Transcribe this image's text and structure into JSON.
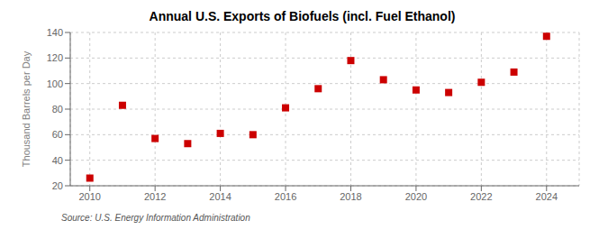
{
  "chart_data": {
    "type": "scatter",
    "title": "Annual U.S. Exports of Biofuels (incl. Fuel Ethanol)",
    "y_label": "Thousand Barrels per Day",
    "annotations": [
      "Source: U.S. Energy Information Administration"
    ],
    "x": [
      2010,
      2011,
      2012,
      2013,
      2014,
      2015,
      2016,
      2017,
      2018,
      2019,
      2020,
      2021,
      2022,
      2023,
      2024
    ],
    "values": [
      26,
      83,
      57,
      53,
      61,
      60,
      81,
      96,
      118,
      103,
      95,
      93,
      101,
      109,
      137
    ],
    "color": "#cc0000",
    "marker": "square",
    "xlim": [
      2009.4,
      2025.0
    ],
    "xticks": [
      2010,
      2012,
      2014,
      2016,
      2018,
      2020,
      2022,
      2024
    ],
    "ylim": [
      20,
      140
    ],
    "yticks": [
      20,
      40,
      60,
      80,
      100,
      120,
      140
    ],
    "grid": true
  }
}
